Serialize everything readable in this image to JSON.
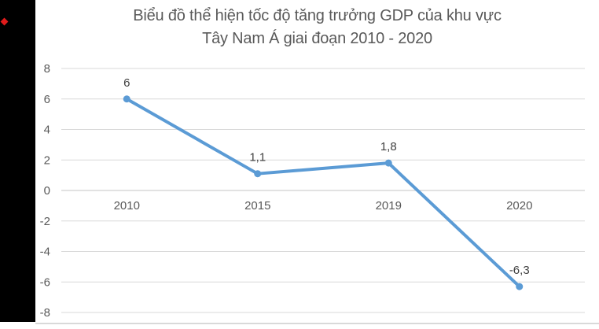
{
  "page": {
    "background": "#ffffff"
  },
  "decorations": {
    "left_panel_color": "#000000",
    "red_diamond_color": "#e01b1b",
    "divider_color": "#d9d9d9"
  },
  "title": {
    "line1": "Biểu đồ thể hiện tốc độ tăng trưởng GDP của khu vực",
    "line2": "Tây Nam Á giai đoạn 2010 - 2020",
    "color": "#595959"
  },
  "chart_data": {
    "type": "line",
    "categories": [
      "2010",
      "2015",
      "2019",
      "2020"
    ],
    "values": [
      6,
      1.1,
      1.8,
      -6.3
    ],
    "point_labels": [
      "6",
      "1,1",
      "1,8",
      "-6,3"
    ],
    "yticks": [
      8,
      6,
      4,
      2,
      0,
      -2,
      -4,
      -6,
      -8
    ],
    "ylim": [
      -8,
      8
    ],
    "xlabel": "",
    "ylabel": "",
    "legend": "none",
    "grid": "horizontal",
    "line_color": "#5b9bd5",
    "marker_color": "#5b9bd5",
    "grid_color": "#d9d9d9",
    "axis_line_color": "#c6c6c6",
    "tick_label_color": "#595959",
    "data_label_color": "#404040"
  }
}
